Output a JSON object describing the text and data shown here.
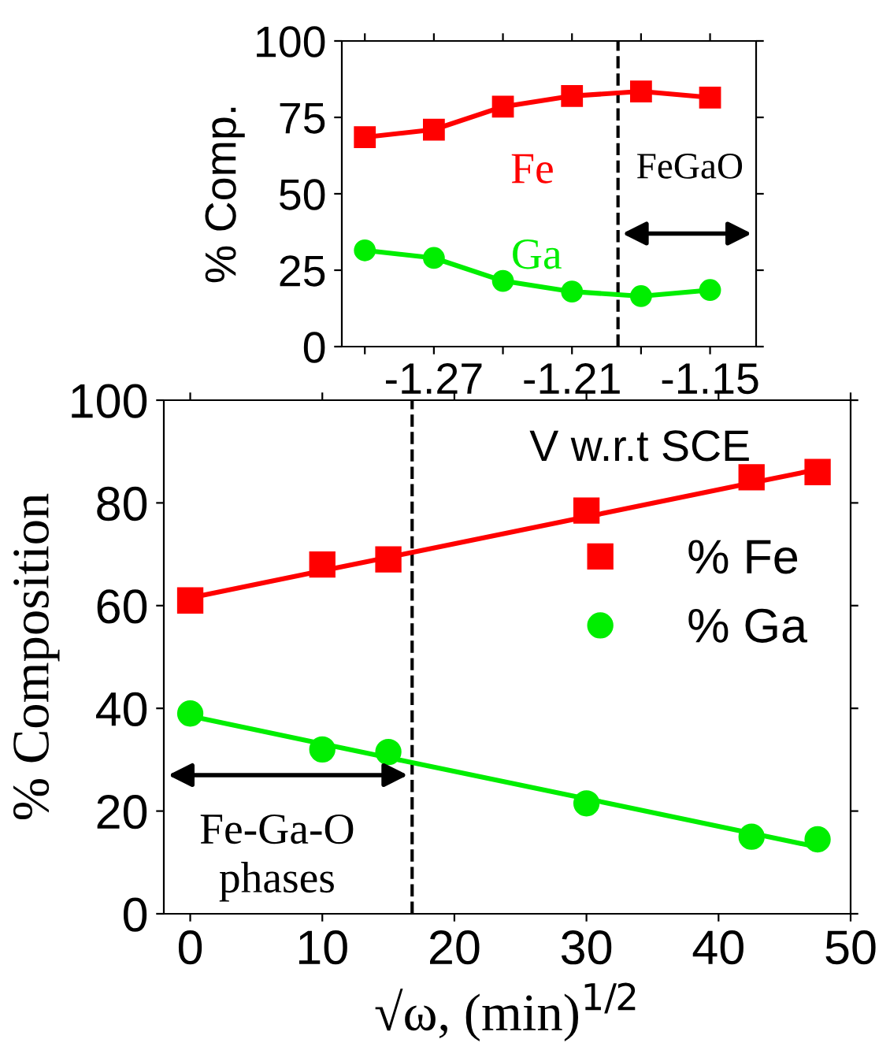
{
  "chart_data": [
    {
      "type": "line",
      "ylabel": "% Comp.",
      "xlabel": "V w.r.t SCE",
      "xlim": [
        -1.31,
        -1.13
      ],
      "ylim": [
        0,
        100
      ],
      "xticks": [
        {
          "value": -1.3,
          "label": null
        },
        -1.27,
        {
          "value": -1.24,
          "label": null
        },
        -1.21,
        {
          "value": -1.18,
          "label": null
        },
        -1.15
      ],
      "yticks": [
        0,
        25,
        50,
        75,
        100
      ],
      "x": [
        -1.3,
        -1.27,
        -1.24,
        -1.21,
        -1.18,
        -1.15
      ],
      "series": [
        {
          "color": "#ff0000",
          "marker": "square",
          "values": [
            68.5,
            71,
            78.5,
            82,
            83.5,
            81.5
          ]
        },
        {
          "color": "#00ee00",
          "marker": "circle",
          "values": [
            31.5,
            29,
            21.5,
            18,
            16.5,
            18.5
          ]
        }
      ],
      "ref_lines": [
        {
          "axis": "x",
          "value": -1.19,
          "line_style": "dashed",
          "color": "#000000"
        }
      ],
      "annotations": [
        "Fe",
        "Ga",
        "FeGaO"
      ],
      "grid": false,
      "legend": false
    },
    {
      "type": "scatter",
      "xlabel": "√ω, (min)$^{1/2}$",
      "ylabel": "% Composition",
      "xlim": [
        -2,
        50
      ],
      "ylim": [
        0,
        100
      ],
      "xticks": [
        0,
        10,
        20,
        30,
        40,
        50
      ],
      "yticks": [
        0,
        20,
        40,
        60,
        80,
        100
      ],
      "x": [
        0,
        10,
        15,
        30,
        42.5,
        47.5
      ],
      "series": [
        {
          "name": "% Fe",
          "color": "#ff0000",
          "marker": "square",
          "values": [
            61,
            68,
            69,
            78.5,
            85,
            86
          ]
        },
        {
          "name": "% Ga",
          "color": "#00ee00",
          "marker": "circle",
          "values": [
            39,
            32,
            31.5,
            21.5,
            15,
            14.5
          ]
        },
        {
          "type": "line",
          "color": "#ff0000",
          "values": [
            61.5,
            66.8,
            69.4,
            77.3,
            83.9,
            86.5
          ]
        },
        {
          "type": "line",
          "color": "#00ee00",
          "values": [
            38.5,
            33.1,
            30.4,
            22.4,
            15.7,
            13
          ]
        }
      ],
      "ref_lines": [
        {
          "axis": "x",
          "value": 16.8,
          "line_style": "dashed",
          "color": "#000000"
        }
      ],
      "annotations": [
        "Fe-Ga-O\nphases"
      ],
      "grid": false,
      "legend": "right"
    }
  ]
}
